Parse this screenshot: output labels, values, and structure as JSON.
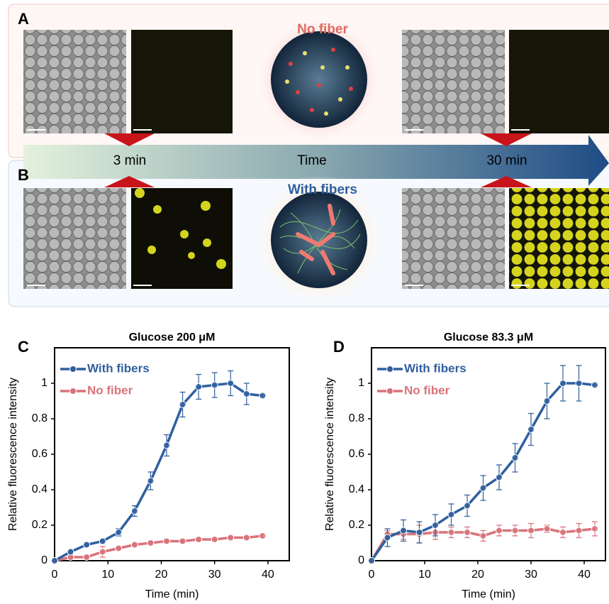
{
  "figure": {
    "panels": [
      {
        "label": "A",
        "title": "No fiber"
      },
      {
        "label": "B",
        "title": "With fibers"
      }
    ],
    "timeline": {
      "label": "Time",
      "marks": [
        "3 min",
        "30 min"
      ]
    }
  },
  "chart_data": [
    {
      "type": "line",
      "panel": "C",
      "title": "Glucose 200 μM",
      "xlabel": "Time (min)",
      "ylabel": "Relative fluorescence intensity",
      "x": [
        0,
        3,
        6,
        9,
        12,
        15,
        18,
        21,
        24,
        27,
        30,
        33,
        36,
        39
      ],
      "series": [
        {
          "name": "With fibers",
          "color": "#2f5f9f",
          "values": [
            0,
            0.05,
            0.09,
            0.11,
            0.16,
            0.28,
            0.45,
            0.65,
            0.88,
            0.98,
            0.99,
            1.0,
            0.94,
            0.93
          ],
          "errors": [
            0,
            0.01,
            0.01,
            0.01,
            0.02,
            0.03,
            0.05,
            0.06,
            0.07,
            0.07,
            0.07,
            0.07,
            0.06,
            0
          ]
        },
        {
          "name": "No fiber",
          "color": "#d9727a",
          "values": [
            0,
            0.02,
            0.02,
            0.05,
            0.07,
            0.09,
            0.1,
            0.11,
            0.11,
            0.12,
            0.12,
            0.13,
            0.13,
            0.14
          ],
          "errors": [
            0,
            0.01,
            0.01,
            0.03,
            0.01,
            0.01,
            0.01,
            0.01,
            0.01,
            0.01,
            0.01,
            0.01,
            0.01,
            0.01
          ]
        }
      ],
      "xlim": [
        0,
        44
      ],
      "ylim": [
        0,
        1.2
      ],
      "xticks": [
        0,
        10,
        20,
        30,
        40
      ],
      "yticks": [
        0,
        0.2,
        0.4,
        0.6,
        0.8,
        1
      ],
      "legend": "upper left"
    },
    {
      "type": "line",
      "panel": "D",
      "title": "Glucose 83.3 μM",
      "xlabel": "Time (min)",
      "ylabel": "Relative fluorescence intensity",
      "x": [
        0,
        3,
        6,
        9,
        12,
        15,
        18,
        21,
        24,
        27,
        30,
        33,
        36,
        39,
        42
      ],
      "series": [
        {
          "name": "With fibers",
          "color": "#2f5f9f",
          "values": [
            0,
            0.13,
            0.17,
            0.16,
            0.2,
            0.26,
            0.31,
            0.41,
            0.47,
            0.58,
            0.74,
            0.9,
            1.0,
            1.0,
            0.99
          ],
          "errors": [
            0,
            0.05,
            0.06,
            0.06,
            0.06,
            0.06,
            0.06,
            0.07,
            0.07,
            0.08,
            0.09,
            0.1,
            0.1,
            0.1,
            0
          ]
        },
        {
          "name": "No fiber",
          "color": "#d9727a",
          "values": [
            0,
            0.15,
            0.15,
            0.15,
            0.16,
            0.16,
            0.16,
            0.14,
            0.17,
            0.17,
            0.17,
            0.18,
            0.16,
            0.17,
            0.18
          ],
          "errors": [
            0,
            0.02,
            0.03,
            0.05,
            0.04,
            0.03,
            0.03,
            0.03,
            0.03,
            0.03,
            0.04,
            0.02,
            0.03,
            0.04,
            0.04
          ]
        }
      ],
      "xlim": [
        0,
        44
      ],
      "ylim": [
        0,
        1.2
      ],
      "xticks": [
        0,
        10,
        20,
        30,
        40
      ],
      "yticks": [
        0,
        0.2,
        0.4,
        0.6,
        0.8,
        1
      ],
      "legend": "upper left"
    }
  ]
}
